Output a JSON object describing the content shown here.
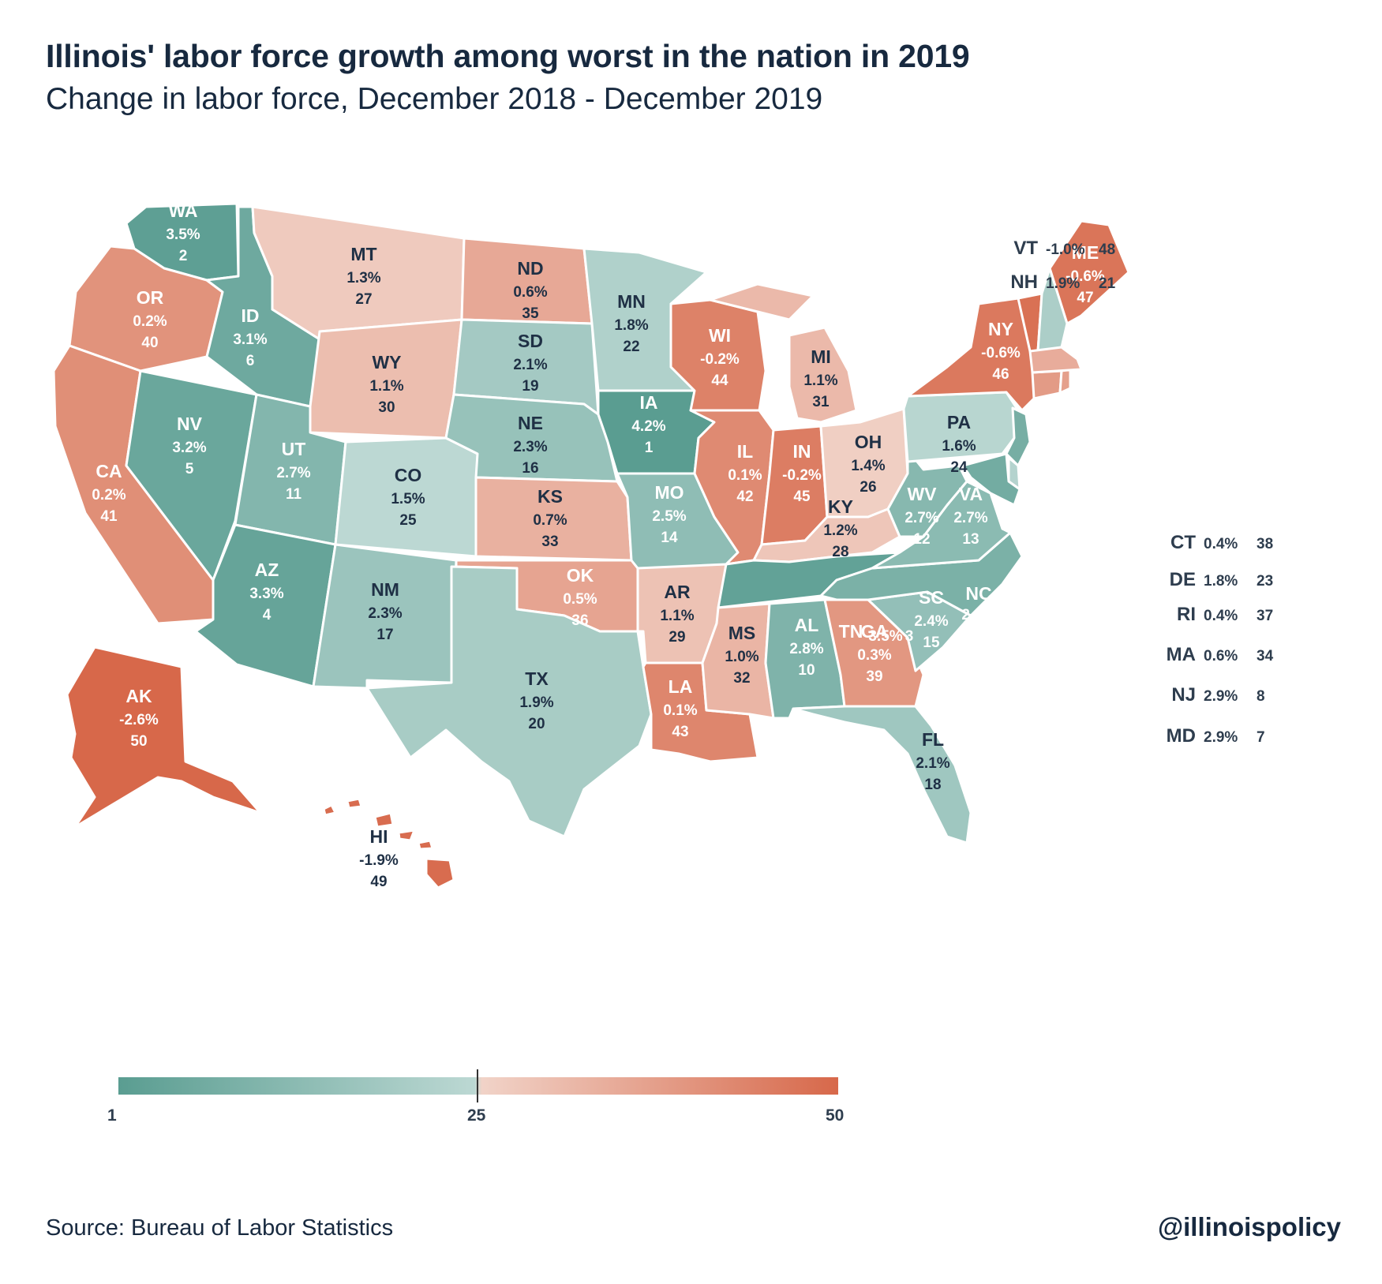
{
  "title": "Illinois' labor force growth among worst in the nation in 2019",
  "subtitle": "Change in labor force, December 2018 - December 2019",
  "source": "Source: Bureau of Labor Statistics",
  "handle": "@illinoispolicy",
  "legend": {
    "min": "1",
    "mid": "25",
    "max": "50"
  },
  "colors": {
    "low_rank": "#5a9d91",
    "mid_rank": "#bcd8d3",
    "high_rank": "#d7684a",
    "neutral": "#f1d3c8"
  },
  "chart_data": {
    "type": "choropleth",
    "title": "Illinois' labor force growth among worst in the nation in 2019",
    "subtitle": "Change in labor force, December 2018 - December 2019",
    "color_by": "rank",
    "color_scale": {
      "min": 1,
      "mid": 25,
      "max": 50
    },
    "states": [
      {
        "abbr": "WA",
        "change": "3.5%",
        "rank": 2
      },
      {
        "abbr": "OR",
        "change": "0.2%",
        "rank": 40
      },
      {
        "abbr": "CA",
        "change": "0.2%",
        "rank": 41
      },
      {
        "abbr": "NV",
        "change": "3.2%",
        "rank": 5
      },
      {
        "abbr": "ID",
        "change": "3.1%",
        "rank": 6
      },
      {
        "abbr": "MT",
        "change": "1.3%",
        "rank": 27
      },
      {
        "abbr": "WY",
        "change": "1.1%",
        "rank": 30
      },
      {
        "abbr": "UT",
        "change": "2.7%",
        "rank": 11
      },
      {
        "abbr": "AZ",
        "change": "3.3%",
        "rank": 4
      },
      {
        "abbr": "CO",
        "change": "1.5%",
        "rank": 25
      },
      {
        "abbr": "NM",
        "change": "2.3%",
        "rank": 17
      },
      {
        "abbr": "ND",
        "change": "0.6%",
        "rank": 35
      },
      {
        "abbr": "SD",
        "change": "2.1%",
        "rank": 19
      },
      {
        "abbr": "NE",
        "change": "2.3%",
        "rank": 16
      },
      {
        "abbr": "KS",
        "change": "0.7%",
        "rank": 33
      },
      {
        "abbr": "OK",
        "change": "0.5%",
        "rank": 36
      },
      {
        "abbr": "TX",
        "change": "1.9%",
        "rank": 20
      },
      {
        "abbr": "MN",
        "change": "1.8%",
        "rank": 22
      },
      {
        "abbr": "IA",
        "change": "4.2%",
        "rank": 1
      },
      {
        "abbr": "MO",
        "change": "2.5%",
        "rank": 14
      },
      {
        "abbr": "AR",
        "change": "1.1%",
        "rank": 29
      },
      {
        "abbr": "LA",
        "change": "0.1%",
        "rank": 43
      },
      {
        "abbr": "WI",
        "change": "-0.2%",
        "rank": 44
      },
      {
        "abbr": "IL",
        "change": "0.1%",
        "rank": 42
      },
      {
        "abbr": "MI",
        "change": "1.1%",
        "rank": 31
      },
      {
        "abbr": "IN",
        "change": "-0.2%",
        "rank": 45
      },
      {
        "abbr": "OH",
        "change": "1.4%",
        "rank": 26
      },
      {
        "abbr": "KY",
        "change": "1.2%",
        "rank": 28
      },
      {
        "abbr": "TN",
        "change": "3.5%",
        "rank": 3
      },
      {
        "abbr": "MS",
        "change": "1.0%",
        "rank": 32
      },
      {
        "abbr": "AL",
        "change": "2.8%",
        "rank": 10
      },
      {
        "abbr": "GA",
        "change": "0.3%",
        "rank": 39
      },
      {
        "abbr": "FL",
        "change": "2.1%",
        "rank": 18
      },
      {
        "abbr": "SC",
        "change": "2.4%",
        "rank": 15
      },
      {
        "abbr": "NC",
        "change": "2.9%",
        "rank": 9
      },
      {
        "abbr": "VA",
        "change": "2.7%",
        "rank": 13
      },
      {
        "abbr": "WV",
        "change": "2.7%",
        "rank": 12
      },
      {
        "abbr": "PA",
        "change": "1.6%",
        "rank": 24
      },
      {
        "abbr": "NY",
        "change": "-0.6%",
        "rank": 46
      },
      {
        "abbr": "ME",
        "change": "-0.6%",
        "rank": 47
      },
      {
        "abbr": "AK",
        "change": "-2.6%",
        "rank": 50
      },
      {
        "abbr": "HI",
        "change": "-1.9%",
        "rank": 49
      },
      {
        "abbr": "VT",
        "change": "-1.0%",
        "rank": 48
      },
      {
        "abbr": "NH",
        "change": "1.9%",
        "rank": 21
      },
      {
        "abbr": "CT",
        "change": "0.4%",
        "rank": 38
      },
      {
        "abbr": "DE",
        "change": "1.8%",
        "rank": 23
      },
      {
        "abbr": "RI",
        "change": "0.4%",
        "rank": 37
      },
      {
        "abbr": "MA",
        "change": "0.6%",
        "rank": 34
      },
      {
        "abbr": "NJ",
        "change": "2.9%",
        "rank": 8
      },
      {
        "abbr": "MD",
        "change": "2.9%",
        "rank": 7
      }
    ]
  }
}
